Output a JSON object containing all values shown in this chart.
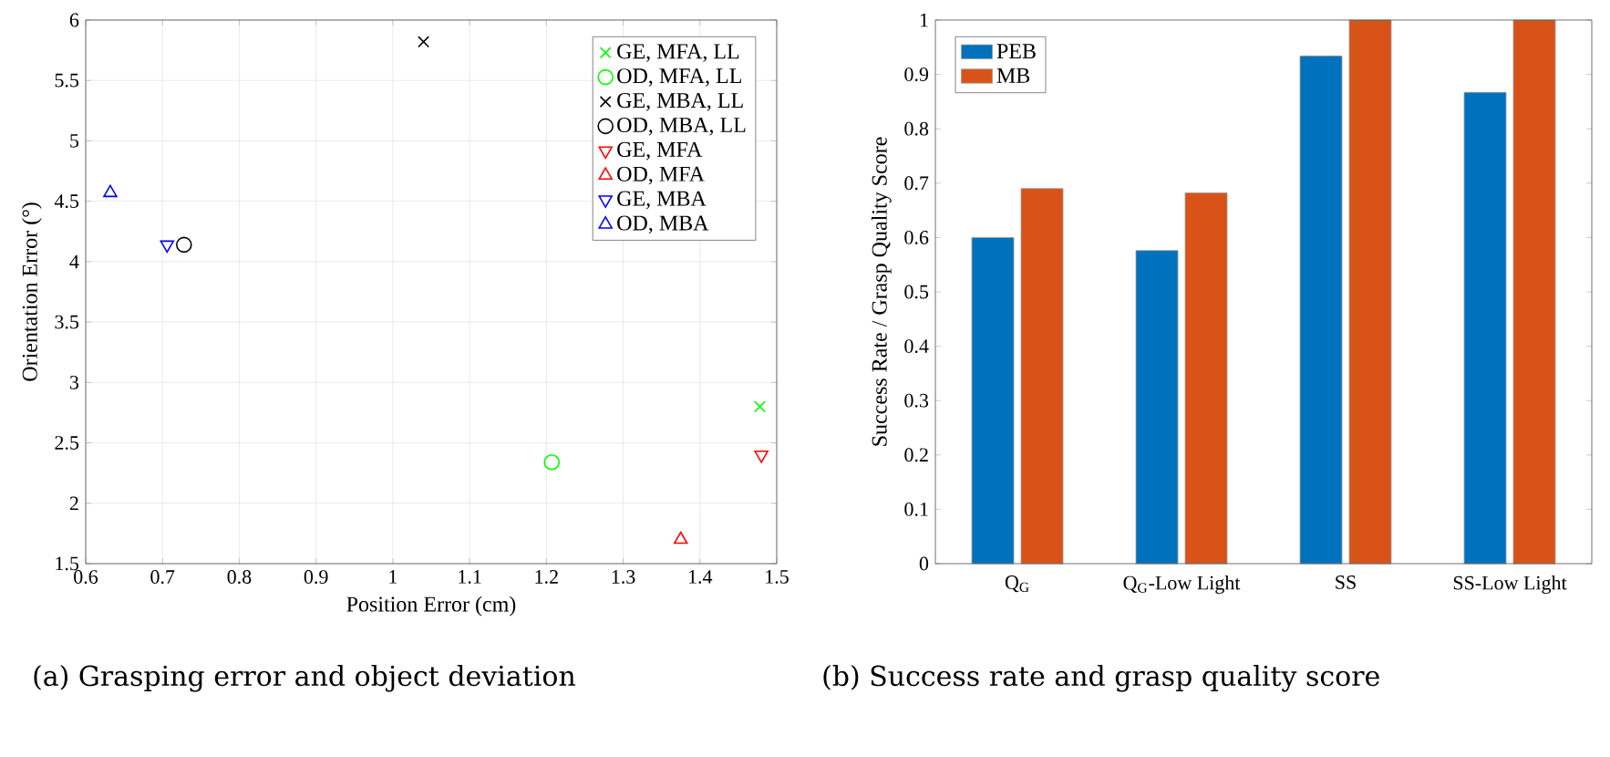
{
  "chart_data": [
    {
      "type": "scatter",
      "xlabel": "Position Error (cm)",
      "ylabel": "Orientation Error (°)",
      "annotations": [
        "(a) Grasping error and object deviation"
      ],
      "xlim": [
        0.6,
        1.5
      ],
      "ylim": [
        1.5,
        6
      ],
      "xticks": [
        0.6,
        0.7,
        0.8,
        0.9,
        1,
        1.1,
        1.2,
        1.3,
        1.4,
        1.5
      ],
      "yticks": [
        1.5,
        2,
        2.5,
        3,
        3.5,
        4,
        4.5,
        5,
        5.5,
        6
      ],
      "grid": true,
      "legend": "top right",
      "series": [
        {
          "name": "GE, MFA, LL",
          "color": "#00ff00",
          "marker": "cross",
          "x": [
            1.478
          ],
          "values": [
            2.8
          ]
        },
        {
          "name": "OD, MFA, LL",
          "color": "#00ff00",
          "marker": "circle",
          "x": [
            1.207
          ],
          "values": [
            2.34
          ]
        },
        {
          "name": "GE, MBA, LL",
          "color": "#000000",
          "marker": "cross",
          "x": [
            1.04
          ],
          "values": [
            5.82
          ]
        },
        {
          "name": "OD, MBA, LL",
          "color": "#000000",
          "marker": "circle",
          "x": [
            0.728
          ],
          "values": [
            4.14
          ]
        },
        {
          "name": "GE, MFA",
          "color": "#ff0000",
          "marker": "triangle down",
          "x": [
            1.48
          ],
          "values": [
            2.4
          ]
        },
        {
          "name": "OD, MFA",
          "color": "#ff0000",
          "marker": "triangle",
          "x": [
            1.375
          ],
          "values": [
            1.7
          ]
        },
        {
          "name": "GE, MBA",
          "color": "#0000ff",
          "marker": "triangle down",
          "x": [
            0.706
          ],
          "values": [
            4.14
          ]
        },
        {
          "name": "OD, MBA",
          "color": "#0000ff",
          "marker": "triangle",
          "x": [
            0.632
          ],
          "values": [
            4.57
          ]
        }
      ]
    },
    {
      "type": "bar",
      "ylabel": "Success Rate / Grasp Quality Score",
      "annotations": [
        "(b) Success rate and grasp quality score"
      ],
      "categories": [
        "Q$_{G}$",
        "Q$_{G}$-Low Light",
        "SS",
        "SS-Low Light"
      ],
      "ylim": [
        0,
        1
      ],
      "yticks": [
        0,
        0.1,
        0.2,
        0.3,
        0.4,
        0.5,
        0.6,
        0.7,
        0.8,
        0.9,
        1
      ],
      "legend": "top left",
      "series": [
        {
          "name": "PEB",
          "color": "#0072bd",
          "values": [
            0.6,
            0.576,
            0.934,
            0.867
          ]
        },
        {
          "name": "MB",
          "color": "#d95319",
          "values": [
            0.69,
            0.682,
            1.0,
            1.0
          ]
        }
      ]
    }
  ]
}
